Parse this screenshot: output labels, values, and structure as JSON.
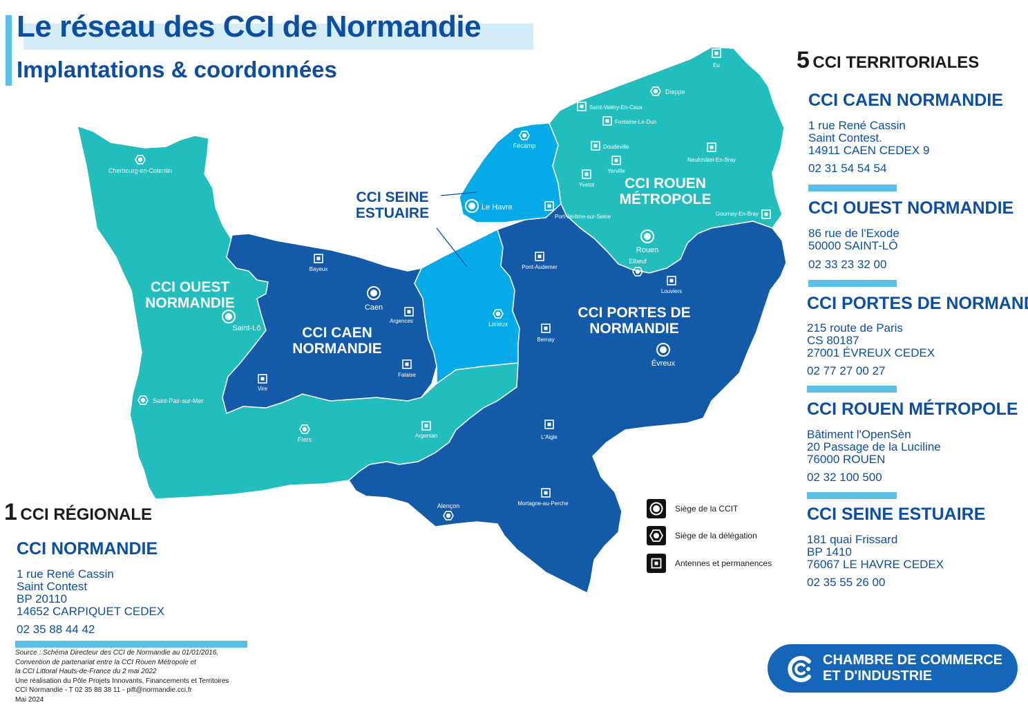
{
  "header": {
    "title": "Le réseau des CCI de Normandie",
    "subtitle": "Implantations & coordonnées"
  },
  "regional": {
    "count": "1",
    "heading": "CCI RÉGIONALE",
    "name": "CCI NORMANDIE",
    "address": [
      "1 rue René Cassin",
      "Saint Contest",
      "BP 20110",
      "14652 CARPIQUET CEDEX"
    ],
    "phone": "02 35 88 44 42"
  },
  "territorial": {
    "count": "5",
    "heading": "CCI TERRITORIALES",
    "items": [
      {
        "name": "CCI CAEN NORMANDIE",
        "address": [
          "1 rue René Cassin",
          "Saint Contest.",
          "14911 CAEN CEDEX 9"
        ],
        "phone": "02 31 54 54 54"
      },
      {
        "name": "CCI OUEST NORMANDIE",
        "address": [
          "86 rue de l'Exode",
          "50000 SAINT-LÔ"
        ],
        "phone": "02 33 23 32 00"
      },
      {
        "name": "CCI PORTES DE NORMANDIE",
        "address": [
          "215 route de Paris",
          "CS 80187",
          "27001 ÉVREUX CEDEX"
        ],
        "phone": "02 77 27 00 27"
      },
      {
        "name": "CCI ROUEN MÉTROPOLE",
        "address": [
          "Bâtiment l'OpenSèn",
          "20 Passage de la Luciline",
          "76000 ROUEN"
        ],
        "phone": "02 32 100 500"
      },
      {
        "name": "CCI SEINE ESTUAIRE",
        "address": [
          "181 quai Frissard",
          "BP 1410",
          "76067 LE HAVRE CEDEX"
        ],
        "phone": "02 35 55 26 00"
      }
    ]
  },
  "map": {
    "colors": {
      "ouest": "#22bdbd",
      "caen": "#135ba8",
      "seine": "#05abe8",
      "rouen": "#22bdbd",
      "portes": "#135ba8"
    },
    "region_labels": {
      "ouest": [
        "CCI OUEST",
        "NORMANDIE"
      ],
      "caen": [
        "CCI CAEN",
        "NORMANDIE"
      ],
      "seine": [
        "CCI SEINE",
        "ESTUAIRE"
      ],
      "rouen": [
        "CCI ROUEN",
        "MÉTROPOLE"
      ],
      "portes": [
        "CCI PORTES DE",
        "NORMANDIE"
      ]
    },
    "cities": {
      "siege": [
        "Caen",
        "Saint-Lô",
        "Le Havre",
        "Rouen",
        "Évreux"
      ],
      "delegation": [
        "Cherbourg-en-Cotentin",
        "Fécamp",
        "Dieppe",
        "Lisieux",
        "Elbeuf",
        "Saint-Pair-sur-Mer",
        "Flers",
        "Alençon"
      ],
      "antenne": [
        "Eu",
        "Saint-Valéry-En-Caux",
        "Fontaine-Le-Dun",
        "Doudeville",
        "Neufchâtel-En-Bray",
        "Yerville",
        "Yvetot",
        "Gournay-En-Bray",
        "Port-Jérôme-sur-Seine",
        "Bayeux",
        "Argences",
        "Pont-Audemer",
        "Louviers",
        "Bernay",
        "Vire",
        "Falaise",
        "Argentan",
        "L'Aigle",
        "Mortagne-au-Perche"
      ]
    }
  },
  "legend": {
    "siege": "Siège de la CCIT",
    "delegation": "Siège de la délégation",
    "antenne": "Antennes et permanences"
  },
  "source": {
    "lines": [
      "Source :  Schéma Directeur des CCI de Normandie au 01/01/2016,",
      "Convention de partenariat entre la CCI Rouen Métropole et",
      "la CCI Littoral Hauts-de-France du 2 mai 2022",
      "Une réalisation du Pôle Projets Innovants, Financements et Territoires",
      "CCI Normandie - T 02 35 88 38 11 - pift@normandie.cci.fr",
      "Mai 2024"
    ]
  },
  "logo": {
    "line1": "CHAMBRE DE COMMERCE",
    "line2": "ET D'INDUSTRIE"
  }
}
